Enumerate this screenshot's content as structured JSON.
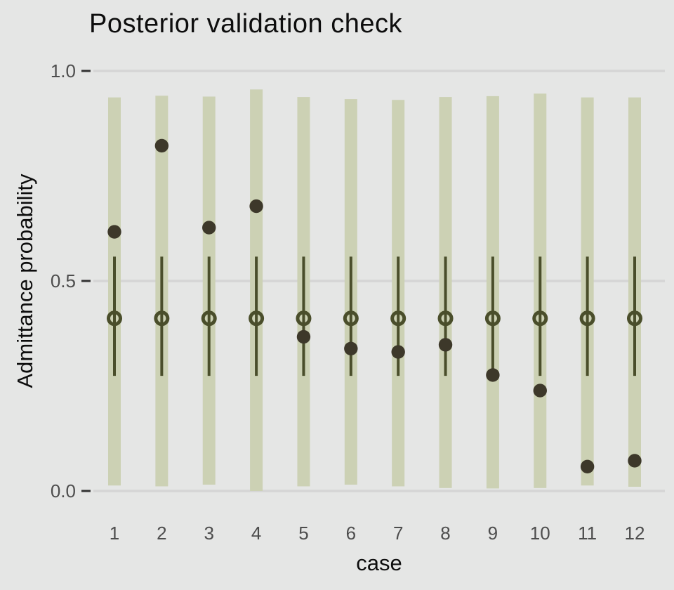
{
  "chart_data": {
    "type": "interval-plot-posterior-predictive-check",
    "title": "Posterior validation check",
    "xlabel": "case",
    "ylabel": "Admittance probability",
    "ylim": [
      0,
      1
    ],
    "grid": "horizontal gridlines at y ticks only",
    "legend": "none",
    "y_ticks": [
      {
        "value": 0.0,
        "label": "0.0"
      },
      {
        "value": 0.5,
        "label": "0.5"
      },
      {
        "value": 1.0,
        "label": "1.0"
      }
    ],
    "x_tick_labels": [
      "1",
      "2",
      "3",
      "4",
      "5",
      "6",
      "7",
      "8",
      "9",
      "10",
      "11",
      "12"
    ],
    "series_description": {
      "outer_bar": "wide posterior predictive interval (light sage bar)",
      "inner_line": "narrow posterior interval (dark olive vertical line)",
      "median": "posterior median (open circle)",
      "observed": "observed value (filled dark dot)"
    },
    "cases": [
      {
        "case": 1,
        "outer_low": 0.013,
        "outer_high": 0.937,
        "inner_low": 0.274,
        "inner_high": 0.558,
        "median": 0.411,
        "observed": 0.617
      },
      {
        "case": 2,
        "outer_low": 0.011,
        "outer_high": 0.941,
        "inner_low": 0.274,
        "inner_high": 0.558,
        "median": 0.411,
        "observed": 0.822
      },
      {
        "case": 3,
        "outer_low": 0.015,
        "outer_high": 0.939,
        "inner_low": 0.274,
        "inner_high": 0.558,
        "median": 0.411,
        "observed": 0.627
      },
      {
        "case": 4,
        "outer_low": 0.0,
        "outer_high": 0.956,
        "inner_low": 0.274,
        "inner_high": 0.558,
        "median": 0.411,
        "observed": 0.678
      },
      {
        "case": 5,
        "outer_low": 0.011,
        "outer_high": 0.938,
        "inner_low": 0.274,
        "inner_high": 0.558,
        "median": 0.411,
        "observed": 0.367
      },
      {
        "case": 6,
        "outer_low": 0.015,
        "outer_high": 0.933,
        "inner_low": 0.274,
        "inner_high": 0.558,
        "median": 0.411,
        "observed": 0.339
      },
      {
        "case": 7,
        "outer_low": 0.011,
        "outer_high": 0.931,
        "inner_low": 0.274,
        "inner_high": 0.558,
        "median": 0.411,
        "observed": 0.331
      },
      {
        "case": 8,
        "outer_low": 0.007,
        "outer_high": 0.938,
        "inner_low": 0.274,
        "inner_high": 0.558,
        "median": 0.411,
        "observed": 0.348
      },
      {
        "case": 9,
        "outer_low": 0.006,
        "outer_high": 0.94,
        "inner_low": 0.274,
        "inner_high": 0.558,
        "median": 0.411,
        "observed": 0.276
      },
      {
        "case": 10,
        "outer_low": 0.007,
        "outer_high": 0.946,
        "inner_low": 0.274,
        "inner_high": 0.558,
        "median": 0.411,
        "observed": 0.239
      },
      {
        "case": 11,
        "outer_low": 0.013,
        "outer_high": 0.937,
        "inner_low": 0.274,
        "inner_high": 0.558,
        "median": 0.411,
        "observed": 0.058
      },
      {
        "case": 12,
        "outer_low": 0.01,
        "outer_high": 0.937,
        "inner_low": 0.274,
        "inner_high": 0.558,
        "median": 0.411,
        "observed": 0.072
      }
    ],
    "colors": {
      "background": "#e5e6e5",
      "gridline": "#d5d5d5",
      "outer_bar": "#ccd1b4",
      "inner_line": "#4a4e2b",
      "median_ring": "#4a4e2b",
      "observed_dot": "#3d382a",
      "tick_label": "#4d4d4d",
      "tick_mark": "#333333",
      "text": "#0d0d0d"
    }
  }
}
